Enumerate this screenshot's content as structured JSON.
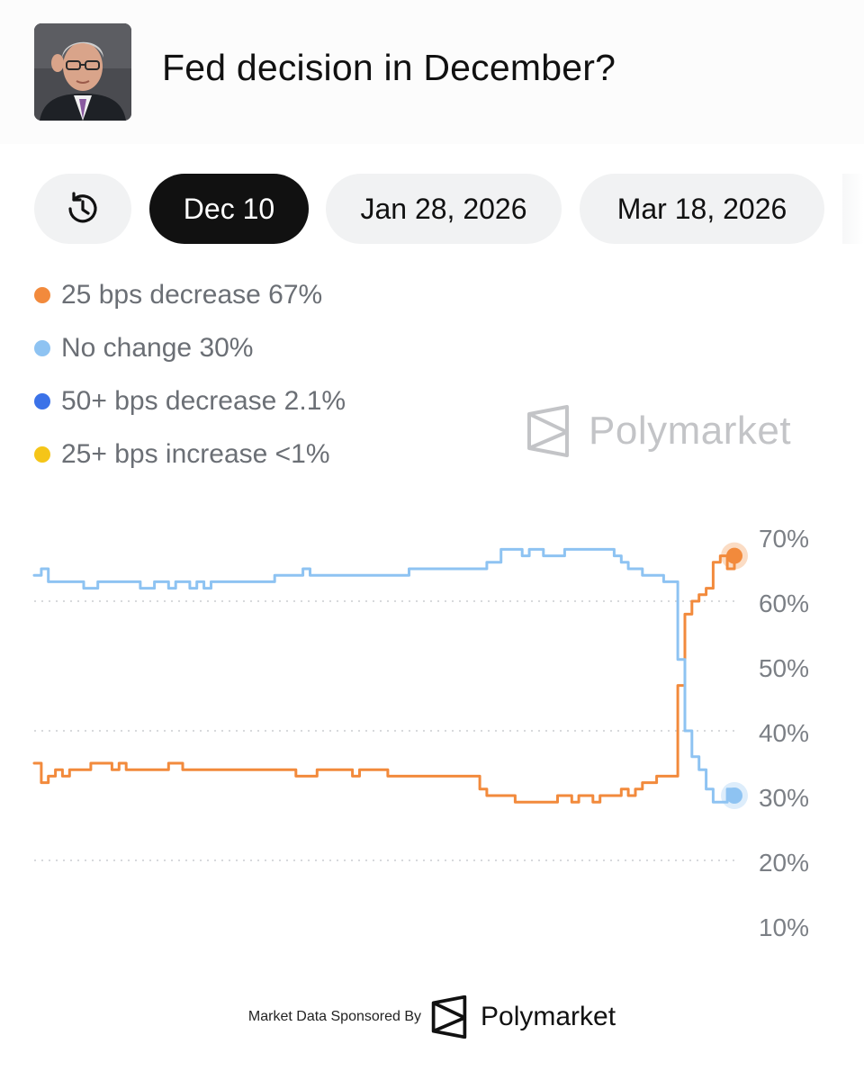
{
  "header": {
    "title": "Fed decision in December?",
    "avatar_icon": "person-portrait-icon"
  },
  "tabs": [
    {
      "label": "Dec 10",
      "active": true
    },
    {
      "label": "Jan 28, 2026",
      "active": false
    },
    {
      "label": "Mar 18, 2026",
      "active": false
    }
  ],
  "history_button_icon": "history-clock-icon",
  "legend": [
    {
      "label": "25 bps decrease 67%",
      "color": "#f28a3c"
    },
    {
      "label": "No change 30%",
      "color": "#8ec3f2"
    },
    {
      "label": "50+ bps decrease 2.1%",
      "color": "#3b72e8"
    },
    {
      "label": "25+ bps increase <1%",
      "color": "#f5c518"
    }
  ],
  "watermark": {
    "brand": "Polymarket",
    "icon": "polymarket-logo-icon"
  },
  "footer": {
    "label": "Market Data Sponsored By",
    "brand": "Polymarket",
    "icon": "polymarket-logo-icon"
  },
  "chart_data": {
    "type": "line",
    "y_ticks": [
      "70%",
      "60%",
      "50%",
      "40%",
      "30%",
      "20%",
      "10%"
    ],
    "ylim": [
      10,
      70
    ],
    "grid": "dotted",
    "x_count": 100,
    "series": [
      {
        "name": "25 bps decrease",
        "color": "#f28a3c",
        "values": [
          35,
          32,
          33,
          34,
          33,
          34,
          34,
          34,
          35,
          35,
          35,
          34,
          35,
          34,
          34,
          34,
          34,
          34,
          34,
          35,
          35,
          34,
          34,
          34,
          34,
          34,
          34,
          34,
          34,
          34,
          34,
          34,
          34,
          34,
          34,
          34,
          34,
          33,
          33,
          33,
          34,
          34,
          34,
          34,
          34,
          33,
          34,
          34,
          34,
          34,
          33,
          33,
          33,
          33,
          33,
          33,
          33,
          33,
          33,
          33,
          33,
          33,
          33,
          31,
          30,
          30,
          30,
          30,
          29,
          29,
          29,
          29,
          29,
          29,
          30,
          30,
          29,
          30,
          30,
          29,
          30,
          30,
          30,
          31,
          30,
          31,
          32,
          32,
          33,
          33,
          33,
          47,
          58,
          60,
          61,
          62,
          66,
          67,
          65,
          67
        ]
      },
      {
        "name": "No change",
        "color": "#8ec3f2",
        "values": [
          64,
          65,
          63,
          63,
          63,
          63,
          63,
          62,
          62,
          63,
          63,
          63,
          63,
          63,
          63,
          62,
          62,
          63,
          63,
          62,
          63,
          63,
          62,
          63,
          62,
          63,
          63,
          63,
          63,
          63,
          63,
          63,
          63,
          63,
          64,
          64,
          64,
          64,
          65,
          64,
          64,
          64,
          64,
          64,
          64,
          64,
          64,
          64,
          64,
          64,
          64,
          64,
          64,
          65,
          65,
          65,
          65,
          65,
          65,
          65,
          65,
          65,
          65,
          65,
          66,
          66,
          68,
          68,
          68,
          67,
          68,
          68,
          67,
          67,
          67,
          68,
          68,
          68,
          68,
          68,
          68,
          68,
          67,
          66,
          65,
          65,
          64,
          64,
          64,
          63,
          63,
          51,
          40,
          36,
          34,
          31,
          29,
          29,
          31,
          30
        ]
      }
    ]
  }
}
